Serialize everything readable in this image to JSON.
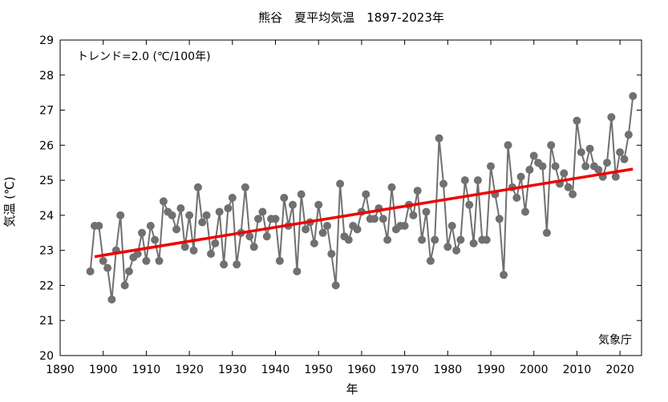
{
  "chart_data": {
    "type": "line",
    "title": "熊谷　夏平均気温　1897-2023年",
    "xlabel": "年",
    "ylabel": "気温 (℃)",
    "annotation_trend": "トレンド=2.0 (℃/100年)",
    "credit": "気象庁",
    "xlim": [
      1890,
      2025
    ],
    "ylim": [
      20,
      29
    ],
    "xticks": [
      1890,
      1900,
      1910,
      1920,
      1930,
      1940,
      1950,
      1960,
      1970,
      1980,
      1990,
      2000,
      2010,
      2020
    ],
    "yticks": [
      20,
      21,
      22,
      23,
      24,
      25,
      26,
      27,
      28,
      29
    ],
    "grid": false,
    "series": [
      {
        "color": "#707070",
        "x_start": 1897,
        "values": [
          22.4,
          23.7,
          23.7,
          22.7,
          22.5,
          21.6,
          23.0,
          24.0,
          22.0,
          22.4,
          22.8,
          22.9,
          23.5,
          22.7,
          23.7,
          23.3,
          22.7,
          24.4,
          24.1,
          24.0,
          23.6,
          24.2,
          23.1,
          24.0,
          23.0,
          24.8,
          23.8,
          24.0,
          22.9,
          23.2,
          24.1,
          22.6,
          24.2,
          24.5,
          22.6,
          23.5,
          24.8,
          23.4,
          23.1,
          23.9,
          24.1,
          23.4,
          23.9,
          23.9,
          22.7,
          24.5,
          23.7,
          24.3,
          22.4,
          24.6,
          23.6,
          23.8,
          23.2,
          24.3,
          23.5,
          23.7,
          22.9,
          22.0,
          24.9,
          23.4,
          23.3,
          23.7,
          23.6,
          24.1,
          24.6,
          23.9,
          23.9,
          24.2,
          23.9,
          23.3,
          24.8,
          23.6,
          23.7,
          23.7,
          24.3,
          24.0,
          24.7,
          23.3,
          24.1,
          22.7,
          23.3,
          26.2,
          24.9,
          23.1,
          23.7,
          23.0,
          23.3,
          25.0,
          24.3,
          23.2,
          25.0,
          23.3,
          23.3,
          25.4,
          24.6,
          23.9,
          22.3,
          26.0,
          24.8,
          24.5,
          25.1,
          24.1,
          25.3,
          25.7,
          25.5,
          25.4,
          23.5,
          26.0,
          25.4,
          24.9,
          25.2,
          24.8,
          24.6,
          26.7,
          25.8,
          25.4,
          25.9,
          25.4,
          25.3,
          25.1,
          25.5,
          26.8,
          25.1,
          25.8,
          25.6,
          26.3,
          27.4
        ]
      },
      {
        "color": "#ee0000",
        "x": [
          1898,
          2023
        ],
        "values": [
          22.82,
          25.32
        ]
      }
    ]
  }
}
